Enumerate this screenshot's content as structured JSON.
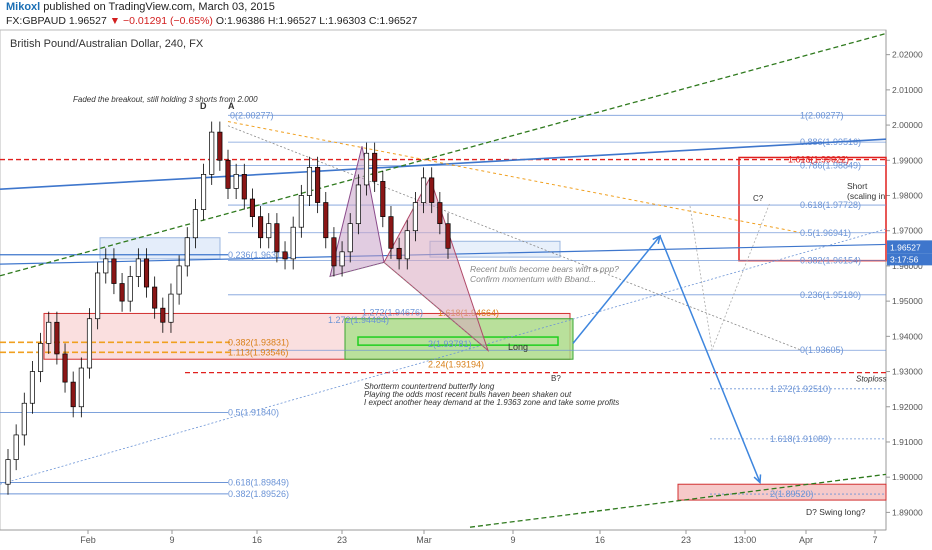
{
  "header": {
    "author": "Mikoxl",
    "published": "published on TradingView.com, March 03, 2015",
    "symbol": "FX:GBPAUD",
    "last": "1.96527",
    "change": "▼ −0.01291 (−0.65%)",
    "open": "O:1.96386",
    "high": "H:1.96527",
    "low": "L:1.96303",
    "close": "C:1.96527"
  },
  "chart_data": {
    "type": "candlestick",
    "title": "British Pound/Australian Dollar, 240, FX",
    "ylim": [
      1.885,
      2.027
    ],
    "y_ticks": [
      "2.02000",
      "2.01000",
      "2.00000",
      "1.99000",
      "1.98000",
      "1.97000",
      "1.96000",
      "1.95000",
      "1.94000",
      "1.93000",
      "1.92000",
      "1.91000",
      "1.90000",
      "1.89000"
    ],
    "x_ticks": [
      "Feb",
      "9",
      "16",
      "23",
      "Mar",
      "9",
      "16",
      "23",
      "13:00",
      "Apr",
      "7"
    ],
    "last_price_label": "1.96527",
    "countdown_label": "3:17:56",
    "price_path": [
      {
        "t": 0,
        "o": 1.898,
        "c": 1.905
      },
      {
        "t": 1,
        "o": 1.905,
        "c": 1.912
      },
      {
        "t": 2,
        "o": 1.912,
        "c": 1.921
      },
      {
        "t": 3,
        "o": 1.921,
        "c": 1.93
      },
      {
        "t": 4,
        "o": 1.93,
        "c": 1.938
      },
      {
        "t": 5,
        "o": 1.938,
        "c": 1.944
      },
      {
        "t": 6,
        "o": 1.944,
        "c": 1.935
      },
      {
        "t": 7,
        "o": 1.935,
        "c": 1.927
      },
      {
        "t": 8,
        "o": 1.927,
        "c": 1.92
      },
      {
        "t": 9,
        "o": 1.92,
        "c": 1.931
      },
      {
        "t": 10,
        "o": 1.931,
        "c": 1.945
      },
      {
        "t": 11,
        "o": 1.945,
        "c": 1.958
      },
      {
        "t": 12,
        "o": 1.958,
        "c": 1.962
      },
      {
        "t": 13,
        "o": 1.962,
        "c": 1.955
      },
      {
        "t": 14,
        "o": 1.955,
        "c": 1.95
      },
      {
        "t": 15,
        "o": 1.95,
        "c": 1.957
      },
      {
        "t": 16,
        "o": 1.957,
        "c": 1.962
      },
      {
        "t": 17,
        "o": 1.962,
        "c": 1.954
      },
      {
        "t": 18,
        "o": 1.954,
        "c": 1.948
      },
      {
        "t": 19,
        "o": 1.948,
        "c": 1.944
      },
      {
        "t": 20,
        "o": 1.944,
        "c": 1.952
      },
      {
        "t": 21,
        "o": 1.952,
        "c": 1.96
      },
      {
        "t": 22,
        "o": 1.96,
        "c": 1.968
      },
      {
        "t": 23,
        "o": 1.968,
        "c": 1.976
      },
      {
        "t": 24,
        "o": 1.976,
        "c": 1.986
      },
      {
        "t": 25,
        "o": 1.986,
        "c": 1.998
      },
      {
        "t": 26,
        "o": 1.998,
        "c": 1.99
      },
      {
        "t": 27,
        "o": 1.99,
        "c": 1.982
      },
      {
        "t": 28,
        "o": 1.982,
        "c": 1.986
      },
      {
        "t": 29,
        "o": 1.986,
        "c": 1.979
      },
      {
        "t": 30,
        "o": 1.979,
        "c": 1.974
      },
      {
        "t": 31,
        "o": 1.974,
        "c": 1.968
      },
      {
        "t": 32,
        "o": 1.968,
        "c": 1.972
      },
      {
        "t": 33,
        "o": 1.972,
        "c": 1.964
      },
      {
        "t": 34,
        "o": 1.964,
        "c": 1.962
      },
      {
        "t": 35,
        "o": 1.962,
        "c": 1.971
      },
      {
        "t": 36,
        "o": 1.971,
        "c": 1.98
      },
      {
        "t": 37,
        "o": 1.98,
        "c": 1.988
      },
      {
        "t": 38,
        "o": 1.988,
        "c": 1.978
      },
      {
        "t": 39,
        "o": 1.978,
        "c": 1.968
      },
      {
        "t": 40,
        "o": 1.968,
        "c": 1.96
      },
      {
        "t": 41,
        "o": 1.96,
        "c": 1.964
      },
      {
        "t": 42,
        "o": 1.964,
        "c": 1.972
      },
      {
        "t": 43,
        "o": 1.972,
        "c": 1.983
      },
      {
        "t": 44,
        "o": 1.983,
        "c": 1.992
      },
      {
        "t": 45,
        "o": 1.992,
        "c": 1.984
      },
      {
        "t": 46,
        "o": 1.984,
        "c": 1.974
      },
      {
        "t": 47,
        "o": 1.974,
        "c": 1.965
      },
      {
        "t": 48,
        "o": 1.965,
        "c": 1.962
      },
      {
        "t": 49,
        "o": 1.962,
        "c": 1.97
      },
      {
        "t": 50,
        "o": 1.97,
        "c": 1.978
      },
      {
        "t": 51,
        "o": 1.978,
        "c": 1.985
      },
      {
        "t": 52,
        "o": 1.985,
        "c": 1.978
      },
      {
        "t": 53,
        "o": 1.978,
        "c": 1.972
      },
      {
        "t": 54,
        "o": 1.972,
        "c": 1.965
      }
    ],
    "fib_labels": {
      "right": [
        "1(2.00277)",
        "0.886(1.99516)",
        "0.786(1.98849)",
        "0.618(1.97728)",
        "0.5(1.96941)",
        "0.382(1.96154)",
        "0.236(1.95180)",
        "0(1.93605)"
      ],
      "left": [
        "0(2.00277)",
        "0.236(1.96317)",
        "0.5(1.91840)",
        "0.618(1.89849)",
        "0.382(1.89526)"
      ],
      "extension": [
        "1.272(1.92510)",
        "1.618(1.91089)",
        "2(1.89520)"
      ],
      "red_extension": "1.618(1.99022)",
      "orange": [
        "0.382(1.93831)",
        "1.113(1.93546)",
        "2.24(1.93194)"
      ],
      "middle": [
        "1.272(1.94676)",
        "1.272(1.94464)",
        "1.618(1.94664)",
        "2(1.93781)"
      ]
    },
    "annotations": {
      "top_note": "Faded the breakout, still holding 3 shorts from 2.000",
      "d_label": "D",
      "a_label": "A",
      "mid_note_1": "Recent bulls become bears with a ppp?",
      "mid_note_2": "Confirm momentum with Bband...",
      "long_label": "Long",
      "b_label": "B?",
      "butterfly_1": "Shortterm countertrend butterfly long",
      "butterfly_2": "Playing the odds most recent bulls haven been shaken out",
      "butterfly_3": "I expect another heay demand at the 1.9363 zone and take some profits",
      "stoploss": "Stoploss",
      "c_label": "C?",
      "short_label_1": "Short",
      "short_label_2": "(scaling in",
      "swing_label": "D? Swing long?"
    },
    "colors": {
      "bull": "#ffffff",
      "bear": "#8a1616",
      "fib": "#6c94d6",
      "trend_blue": "#3e76cc",
      "trend_green": "#2f7a1e",
      "red": "#e0201e",
      "orange": "#f0a020"
    }
  }
}
